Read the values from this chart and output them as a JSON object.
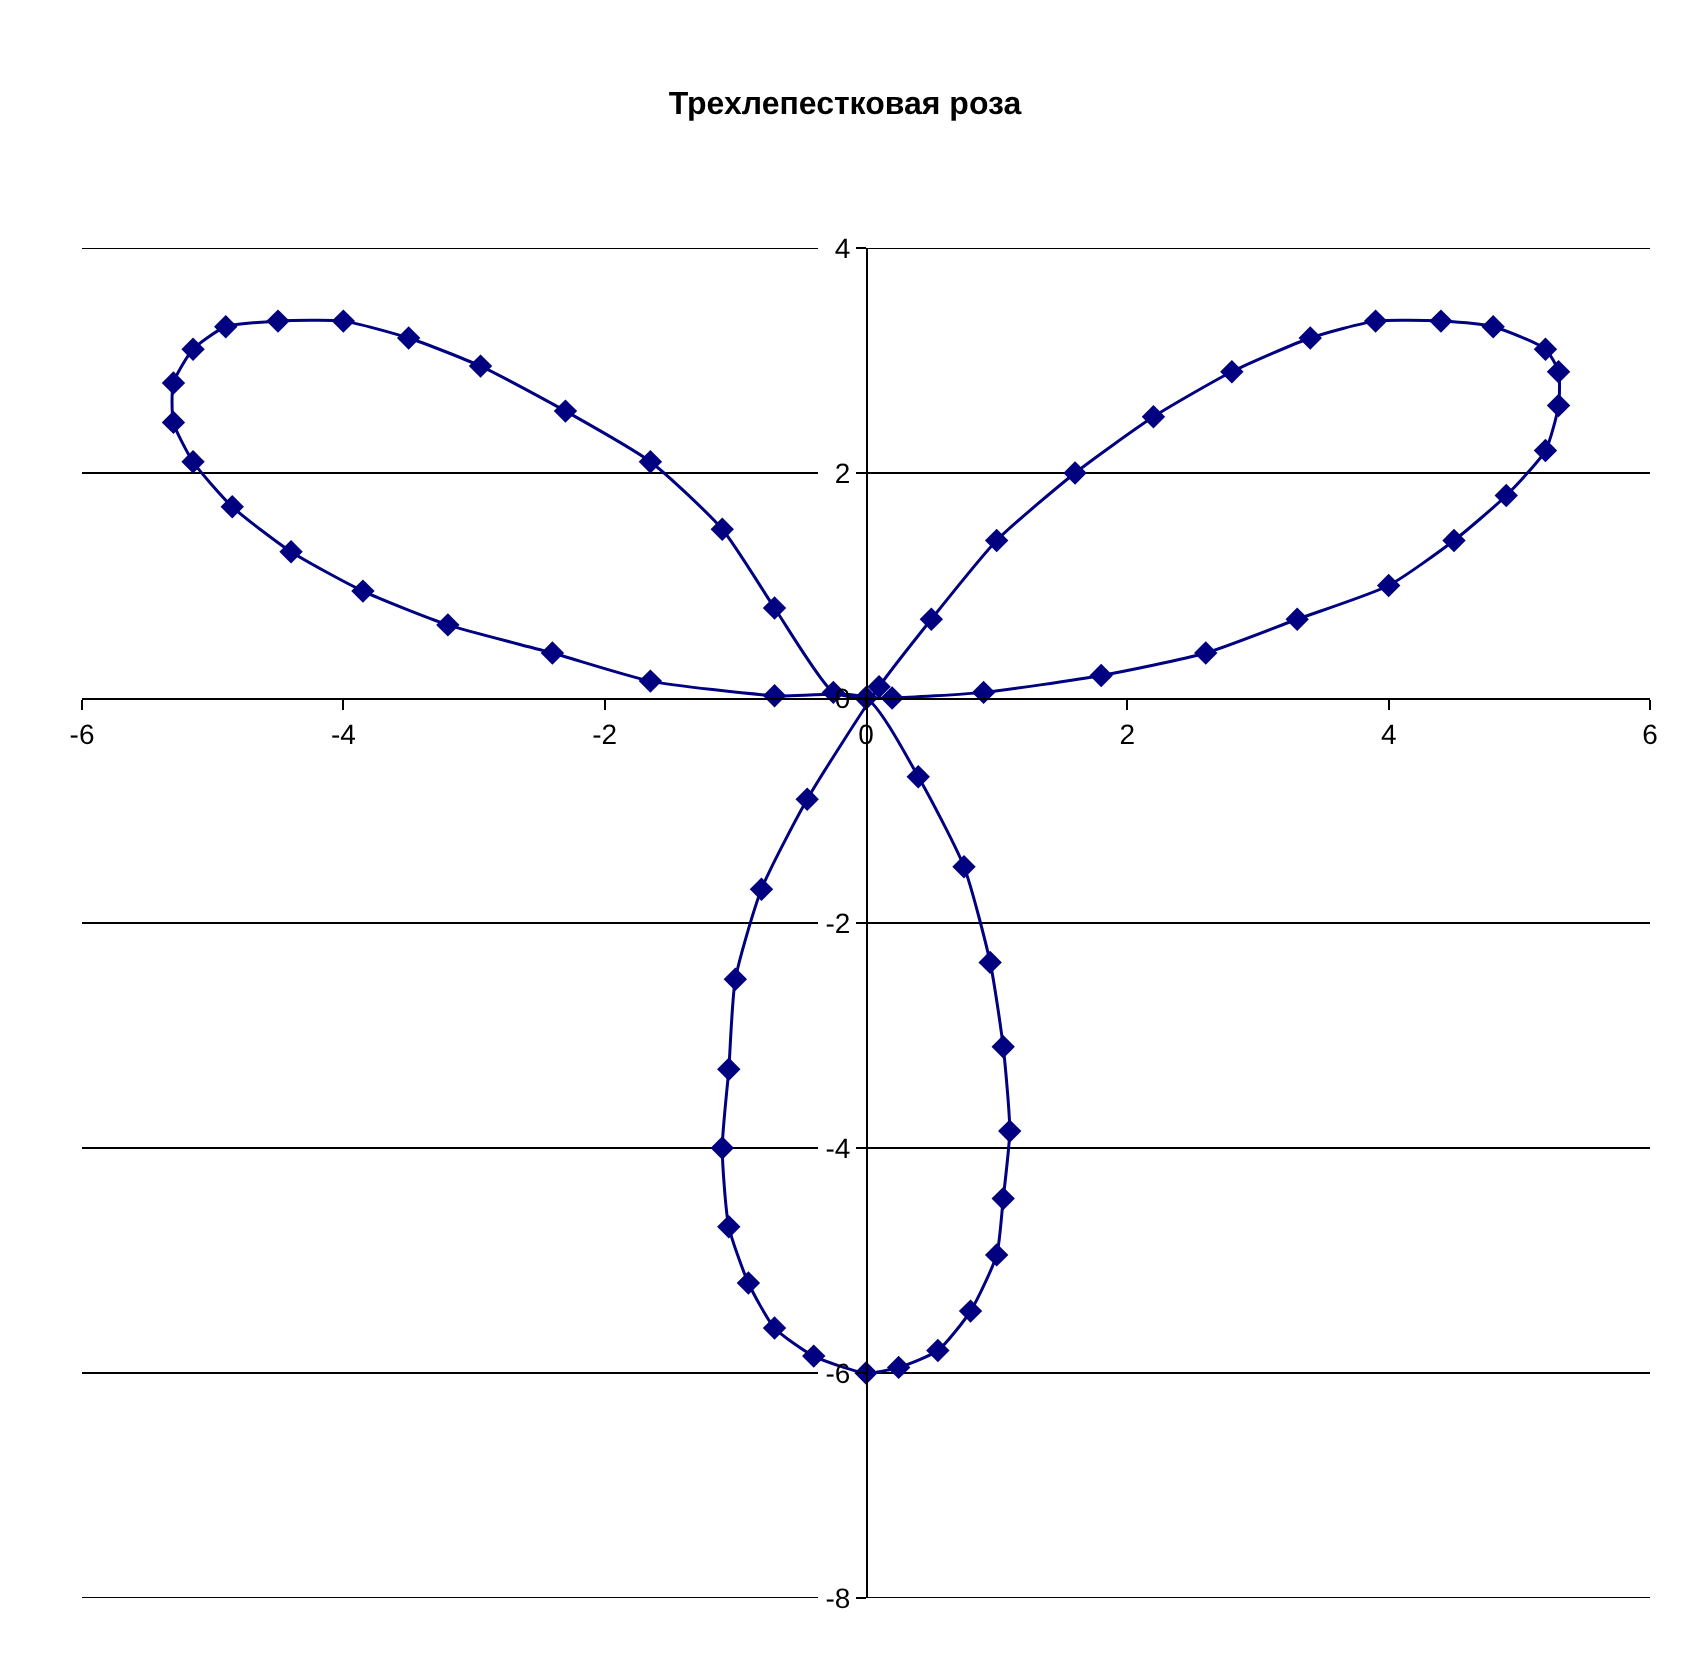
{
  "chart_data": {
    "type": "scatter",
    "title": "Трехлепестковая роза",
    "series": [
      {
        "color": "#000080",
        "x": [
          0.0,
          0.2,
          0.9,
          1.8,
          2.6,
          3.3,
          4.0,
          4.5,
          4.9,
          5.2,
          5.3,
          5.3,
          5.2,
          4.8,
          4.4,
          3.9,
          3.4,
          2.8,
          2.2,
          1.6,
          1.0,
          0.5,
          0.1,
          -0.45,
          -0.8,
          -1.0,
          -1.05,
          -1.1,
          -1.05,
          -0.9,
          -0.7,
          -0.4,
          0.0,
          0.25,
          0.55,
          0.8,
          1.0,
          1.05,
          1.1,
          1.05,
          0.95,
          0.75,
          0.4,
          0.0,
          -0.7,
          -1.65,
          -2.4,
          -3.2,
          -3.85,
          -4.4,
          -4.85,
          -5.15,
          -5.3,
          -5.3,
          -5.15,
          -4.9,
          -4.5,
          -4.0,
          -3.5,
          -2.95,
          -2.3,
          -1.65,
          -1.1,
          -0.7,
          -0.25,
          0.0
        ],
        "values": [
          0.0,
          0.0,
          0.05,
          0.2,
          0.4,
          0.7,
          1.0,
          1.4,
          1.8,
          2.2,
          2.6,
          2.9,
          3.1,
          3.3,
          3.35,
          3.35,
          3.2,
          2.9,
          2.5,
          2.0,
          1.4,
          0.7,
          0.1,
          -0.9,
          -1.7,
          -2.5,
          -3.3,
          -4.0,
          -4.7,
          -5.2,
          -5.6,
          -5.85,
          -6.0,
          -5.95,
          -5.8,
          -5.45,
          -4.95,
          -4.45,
          -3.85,
          -3.1,
          -2.35,
          -1.5,
          -0.7,
          0.0,
          0.02,
          0.15,
          0.4,
          0.65,
          0.95,
          1.3,
          1.7,
          2.1,
          2.45,
          2.8,
          3.1,
          3.3,
          3.35,
          3.35,
          3.2,
          2.95,
          2.55,
          2.1,
          1.5,
          0.8,
          0.05,
          0.0
        ]
      }
    ],
    "marker": "diamond",
    "line_style": "solid",
    "xlim": [
      -6,
      6
    ],
    "xticks": [
      -6,
      -4,
      -2,
      0,
      2,
      4,
      6
    ],
    "ylim": [
      -8,
      4
    ],
    "yticks": [
      -8,
      -6,
      -4,
      -2,
      0,
      2,
      4
    ],
    "grid": "y"
  }
}
